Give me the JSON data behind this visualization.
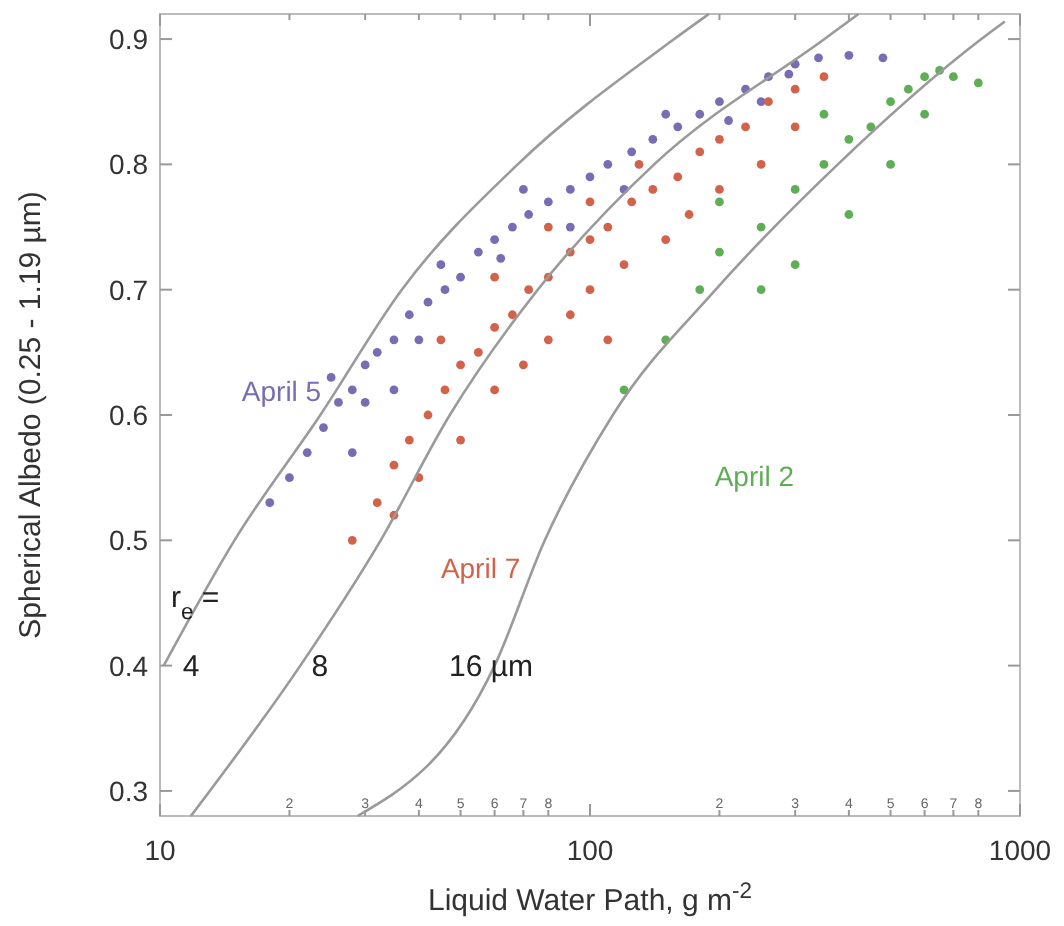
{
  "chart_data": {
    "type": "scatter",
    "xlabel": "Liquid Water Path, g m$^{-2}$",
    "ylabel": "Spherical Albedo (0.25 - 1.19 µm)",
    "log": "x",
    "grid": false,
    "legend": false,
    "marker": "circle",
    "xlim": [
      10,
      1000
    ],
    "ylim": [
      0.28,
      0.92
    ],
    "xticks": [
      10,
      {
        "value": 20,
        "label": null
      },
      {
        "value": 30,
        "label": null
      },
      {
        "value": 40,
        "label": null
      },
      {
        "value": 50,
        "label": null
      },
      {
        "value": 60,
        "label": null
      },
      {
        "value": 70,
        "label": null
      },
      {
        "value": 80,
        "label": null
      },
      100,
      {
        "value": 200,
        "label": null
      },
      {
        "value": 300,
        "label": null
      },
      {
        "value": 400,
        "label": null
      },
      {
        "value": 500,
        "label": null
      },
      {
        "value": 600,
        "label": null
      },
      {
        "value": 700,
        "label": null
      },
      {
        "value": 800,
        "label": null
      },
      1000
    ],
    "yticks": [
      0.3,
      0.4,
      0.5,
      0.6,
      0.7,
      0.8,
      0.9
    ],
    "series": [
      {
        "name": "April 5",
        "color": "#7a6cb4",
        "x": [
          18,
          20,
          22,
          24,
          26,
          28,
          30,
          32,
          35,
          38,
          42,
          46,
          50,
          55,
          60,
          66,
          72,
          80,
          90,
          100,
          110,
          125,
          140,
          160,
          180,
          200,
          230,
          260,
          300,
          340,
          400,
          480,
          25,
          30,
          40,
          45,
          62,
          70,
          90,
          120,
          150,
          210,
          250,
          290,
          28,
          35
        ],
        "values": [
          0.53,
          0.55,
          0.57,
          0.59,
          0.61,
          0.62,
          0.64,
          0.65,
          0.66,
          0.68,
          0.69,
          0.7,
          0.71,
          0.73,
          0.74,
          0.75,
          0.76,
          0.77,
          0.78,
          0.79,
          0.8,
          0.81,
          0.82,
          0.83,
          0.84,
          0.85,
          0.86,
          0.87,
          0.88,
          0.885,
          0.887,
          0.885,
          0.63,
          0.61,
          0.66,
          0.72,
          0.725,
          0.78,
          0.75,
          0.78,
          0.84,
          0.835,
          0.85,
          0.872,
          0.57,
          0.62
        ]
      },
      {
        "name": "April 7",
        "color": "#d2634a",
        "x": [
          28,
          32,
          35,
          38,
          42,
          46,
          50,
          55,
          60,
          66,
          72,
          80,
          90,
          100,
          110,
          125,
          140,
          160,
          180,
          200,
          230,
          260,
          300,
          350,
          40,
          50,
          60,
          70,
          80,
          90,
          100,
          120,
          150,
          60,
          80,
          100,
          130,
          170,
          200,
          250,
          300,
          45,
          35,
          110
        ],
        "values": [
          0.5,
          0.53,
          0.56,
          0.58,
          0.6,
          0.62,
          0.64,
          0.65,
          0.67,
          0.68,
          0.7,
          0.71,
          0.73,
          0.74,
          0.75,
          0.77,
          0.78,
          0.79,
          0.81,
          0.82,
          0.83,
          0.85,
          0.86,
          0.87,
          0.55,
          0.58,
          0.62,
          0.64,
          0.66,
          0.68,
          0.7,
          0.72,
          0.74,
          0.71,
          0.75,
          0.77,
          0.8,
          0.76,
          0.78,
          0.8,
          0.83,
          0.66,
          0.52,
          0.66
        ]
      },
      {
        "name": "April 2",
        "color": "#5fae55",
        "x": [
          150,
          180,
          200,
          250,
          300,
          350,
          400,
          450,
          500,
          550,
          600,
          650,
          700,
          800,
          250,
          300,
          400,
          500,
          120,
          200,
          350,
          600
        ],
        "values": [
          0.66,
          0.7,
          0.73,
          0.75,
          0.78,
          0.8,
          0.82,
          0.83,
          0.85,
          0.86,
          0.87,
          0.875,
          0.87,
          0.865,
          0.7,
          0.72,
          0.76,
          0.8,
          0.62,
          0.77,
          0.84,
          0.84
        ]
      },
      {
        "type": "line",
        "color": "#9a9a9a",
        "marker": "none",
        "x": [
          10.2,
          14.9,
          23.6,
          36.5,
          67.9,
          157,
          189
        ],
        "values": [
          0.4,
          0.5,
          0.6,
          0.7,
          0.8,
          0.9,
          0.92
        ]
      },
      {
        "type": "line",
        "color": "#9a9a9a",
        "marker": "none",
        "x": [
          11.8,
          21.2,
          32.6,
          47.2,
          75.6,
          141,
          351,
          421
        ],
        "values": [
          0.28,
          0.4,
          0.5,
          0.6,
          0.7,
          0.8,
          0.9,
          0.92
        ]
      },
      {
        "type": "line",
        "color": "#9a9a9a",
        "marker": "none",
        "x": [
          28.8,
          60,
          78.5,
          113,
          196,
          377,
          813,
          922
        ],
        "values": [
          0.28,
          0.4,
          0.5,
          0.6,
          0.7,
          0.8,
          0.9,
          0.914
        ]
      }
    ],
    "annotations": [
      "r$_{e}$ =",
      "4",
      "8",
      "16 µm",
      "2",
      "3",
      "4",
      "5",
      "6",
      "7",
      "8",
      "2",
      "3",
      "4",
      "5",
      "6",
      "7",
      "8"
    ]
  }
}
